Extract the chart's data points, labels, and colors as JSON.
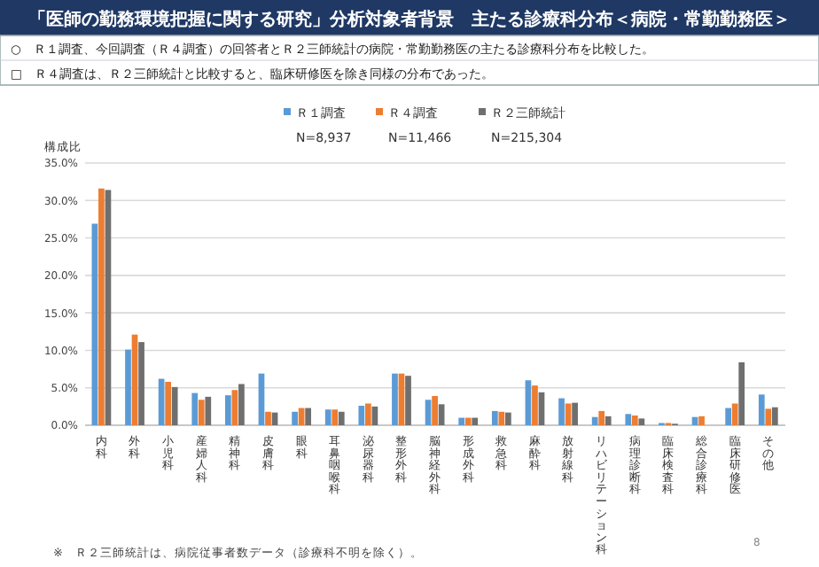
{
  "chart_data": {
    "type": "bar",
    "title": "「医師の勤務環境把握に関する研究」分析対象者背景　主たる診療科分布＜病院・常勤勤務医＞",
    "ylabel": "構成比",
    "annotations": [
      "○　Ｒ１調査、今回調査（Ｒ４調査）の回答者とＲ２三師統計の病院・常勤勤務医の主たる診療科分布を比較した。",
      "□　Ｒ４調査は、Ｒ２三師統計と比較すると、臨床研修医を除き同様の分布であった。",
      "N=8,937",
      "N=11,466",
      "N=215,304",
      "※　Ｒ２三師統計は、病院従事者数データ（診療科不明を除く）。",
      "8"
    ],
    "categories": [
      "内科",
      "外科",
      "小児科",
      "産婦人科",
      "精神科",
      "皮膚科",
      "眼科",
      "耳鼻咽喉科",
      "泌尿器科",
      "整形外科",
      "脳神経外科",
      "形成外科",
      "救急科",
      "麻酔科",
      "放射線科",
      "リハビリテーション科",
      "病理診断科",
      "臨床検査科",
      "総合診療科",
      "臨床研修医",
      "その他"
    ],
    "series": [
      {
        "name": "Ｒ１調査",
        "color": "#5b9bd5",
        "values": [
          26.9,
          10.1,
          6.2,
          4.3,
          4.0,
          6.9,
          1.8,
          2.1,
          2.6,
          6.9,
          3.4,
          1.0,
          1.9,
          6.0,
          3.6,
          1.1,
          1.5,
          0.3,
          1.1,
          2.3,
          4.1
        ]
      },
      {
        "name": "Ｒ４調査",
        "color": "#ed7d31",
        "values": [
          31.6,
          12.1,
          5.8,
          3.4,
          4.7,
          1.8,
          2.3,
          2.1,
          2.9,
          6.9,
          3.9,
          1.0,
          1.8,
          5.3,
          2.9,
          1.9,
          1.3,
          0.3,
          1.2,
          2.9,
          2.2
        ]
      },
      {
        "name": "Ｒ２三師統計",
        "color": "#6f6f6f",
        "values": [
          31.4,
          11.1,
          5.1,
          3.8,
          5.5,
          1.7,
          2.3,
          1.8,
          2.5,
          6.6,
          2.8,
          1.0,
          1.7,
          4.4,
          3.0,
          1.2,
          0.9,
          0.2,
          null,
          8.4,
          2.4
        ]
      }
    ],
    "ylim": [
      0,
      35
    ],
    "yticks": [
      {
        "value": 0,
        "label": "0.0%"
      },
      {
        "value": 5,
        "label": "5.0%"
      },
      {
        "value": 10,
        "label": "10.0%"
      },
      {
        "value": 15,
        "label": "15.0%"
      },
      {
        "value": 20,
        "label": "20.0%"
      },
      {
        "value": 25,
        "label": "25.0%"
      },
      {
        "value": 30,
        "label": "30.0%"
      },
      {
        "value": 35,
        "label": "35.0%"
      }
    ],
    "grid": "y",
    "legend": "top"
  }
}
